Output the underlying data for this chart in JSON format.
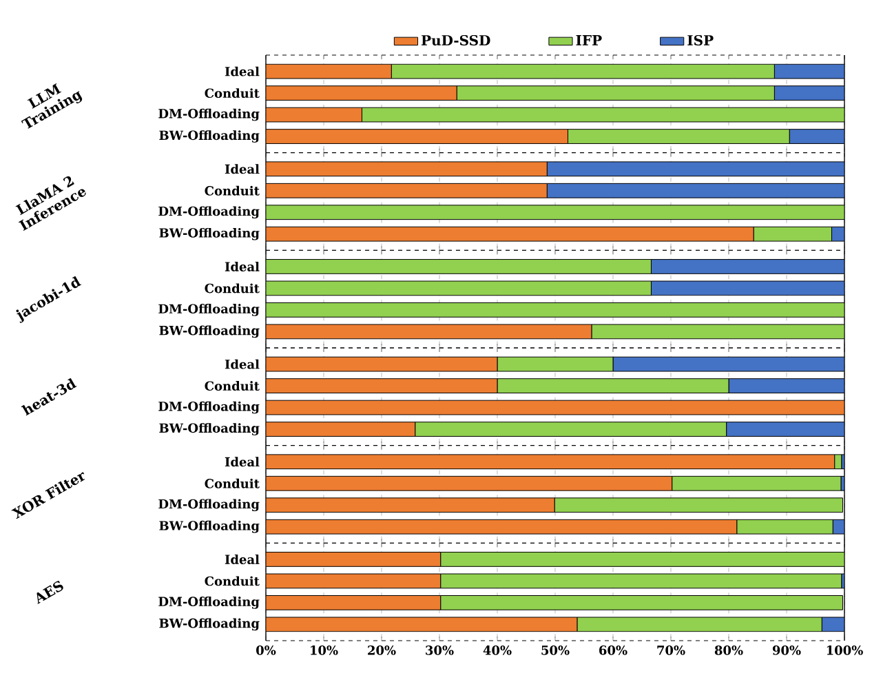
{
  "chart_data": [
    {
      "type": "bar",
      "orientation": "horizontal",
      "stacked": true,
      "ylabel": "LLM Training",
      "categories": [
        "Ideal",
        "Conduit",
        "DM-Offloading",
        "BW-Offloading"
      ],
      "xlim": [
        0,
        100
      ],
      "xticks": [
        0,
        10,
        20,
        30,
        40,
        50,
        60,
        70,
        80,
        90,
        100
      ],
      "grid": "x",
      "legend": "top",
      "tick_labels": "y",
      "series": [
        {
          "name": "PuD-SSD",
          "color": "#ed7d31",
          "values": [
            21.7,
            33.0,
            16.6,
            52.2
          ]
        },
        {
          "name": "IFP",
          "color": "#92d050",
          "values": [
            66.2,
            54.9,
            83.4,
            38.3
          ]
        },
        {
          "name": "ISP",
          "color": "#4472c4",
          "values": [
            12.1,
            12.1,
            0,
            9.5
          ]
        }
      ]
    },
    {
      "type": "bar",
      "orientation": "horizontal",
      "stacked": true,
      "ylabel": "LlaMA 2 Inference",
      "categories": [
        "Ideal",
        "Conduit",
        "DM-Offloading",
        "BW-Offloading"
      ],
      "xlim": [
        0,
        100
      ],
      "xticks": [
        0,
        10,
        20,
        30,
        40,
        50,
        60,
        70,
        80,
        90,
        100
      ],
      "grid": "x",
      "tick_labels": "y",
      "series": [
        {
          "color": "#ed7d31",
          "values": [
            48.6,
            48.6,
            0,
            84.3
          ]
        },
        {
          "color": "#92d050",
          "values": [
            0,
            0,
            100,
            13.5
          ]
        },
        {
          "color": "#4472c4",
          "values": [
            51.4,
            51.4,
            0,
            2.2
          ]
        }
      ]
    },
    {
      "type": "bar",
      "orientation": "horizontal",
      "stacked": true,
      "ylabel": "jacobi-1d",
      "categories": [
        "Ideal",
        "Conduit",
        "DM-Offloading",
        "BW-Offloading"
      ],
      "xlim": [
        0,
        100
      ],
      "xticks": [
        0,
        10,
        20,
        30,
        40,
        50,
        60,
        70,
        80,
        90,
        100
      ],
      "grid": "x",
      "tick_labels": "y",
      "series": [
        {
          "color": "#ed7d31",
          "values": [
            0,
            0,
            0,
            56.3
          ]
        },
        {
          "color": "#92d050",
          "values": [
            66.6,
            66.6,
            100,
            43.7
          ]
        },
        {
          "color": "#4472c4",
          "values": [
            33.4,
            33.4,
            0,
            0
          ]
        }
      ]
    },
    {
      "type": "bar",
      "orientation": "horizontal",
      "stacked": true,
      "ylabel": "heat-3d",
      "categories": [
        "Ideal",
        "Conduit",
        "DM-Offloading",
        "BW-Offloading"
      ],
      "xlim": [
        0,
        100
      ],
      "xticks": [
        0,
        10,
        20,
        30,
        40,
        50,
        60,
        70,
        80,
        90,
        100
      ],
      "grid": "x",
      "tick_labels": "y",
      "series": [
        {
          "color": "#ed7d31",
          "values": [
            40.0,
            40.0,
            100,
            25.8
          ]
        },
        {
          "color": "#92d050",
          "values": [
            20.0,
            40.0,
            0,
            53.8
          ]
        },
        {
          "color": "#4472c4",
          "values": [
            40.0,
            20.0,
            0,
            20.4
          ]
        }
      ]
    },
    {
      "type": "bar",
      "orientation": "horizontal",
      "stacked": true,
      "ylabel": "XOR Filter",
      "categories": [
        "Ideal",
        "Conduit",
        "DM-Offloading",
        "BW-Offloading"
      ],
      "xlim": [
        0,
        100
      ],
      "xticks": [
        0,
        10,
        20,
        30,
        40,
        50,
        60,
        70,
        80,
        90,
        100
      ],
      "grid": "x",
      "tick_labels": "y",
      "series": [
        {
          "color": "#ed7d31",
          "values": [
            98.3,
            70.2,
            49.9,
            81.4
          ]
        },
        {
          "color": "#92d050",
          "values": [
            1.2,
            29.2,
            49.8,
            16.6
          ]
        },
        {
          "color": "#4472c4",
          "values": [
            0.5,
            0.6,
            null,
            2.0
          ]
        }
      ]
    },
    {
      "type": "bar",
      "orientation": "horizontal",
      "stacked": true,
      "ylabel": "AES",
      "categories": [
        "Ideal",
        "Conduit",
        "DM-Offloading",
        "BW-Offloading"
      ],
      "xlim": [
        0,
        100
      ],
      "xticks": [
        {
          "value": 0,
          "label": "0%"
        },
        {
          "value": 10,
          "label": "10%"
        },
        {
          "value": 20,
          "label": "20%"
        },
        {
          "value": 30,
          "label": "30%"
        },
        {
          "value": 40,
          "label": "40%"
        },
        {
          "value": 50,
          "label": "50%"
        },
        {
          "value": 60,
          "label": "60%"
        },
        {
          "value": 70,
          "label": "70%"
        },
        {
          "value": 80,
          "label": "80%"
        },
        {
          "value": 90,
          "label": "90%"
        },
        {
          "value": 100,
          "label": "100%"
        }
      ],
      "grid": "x",
      "series": [
        {
          "color": "#ed7d31",
          "values": [
            30.2,
            30.2,
            30.2,
            53.8
          ]
        },
        {
          "color": "#92d050",
          "values": [
            69.8,
            69.3,
            69.5,
            42.3
          ]
        },
        {
          "color": "#4472c4",
          "values": [
            0,
            0.5,
            null,
            3.9
          ]
        }
      ]
    }
  ]
}
